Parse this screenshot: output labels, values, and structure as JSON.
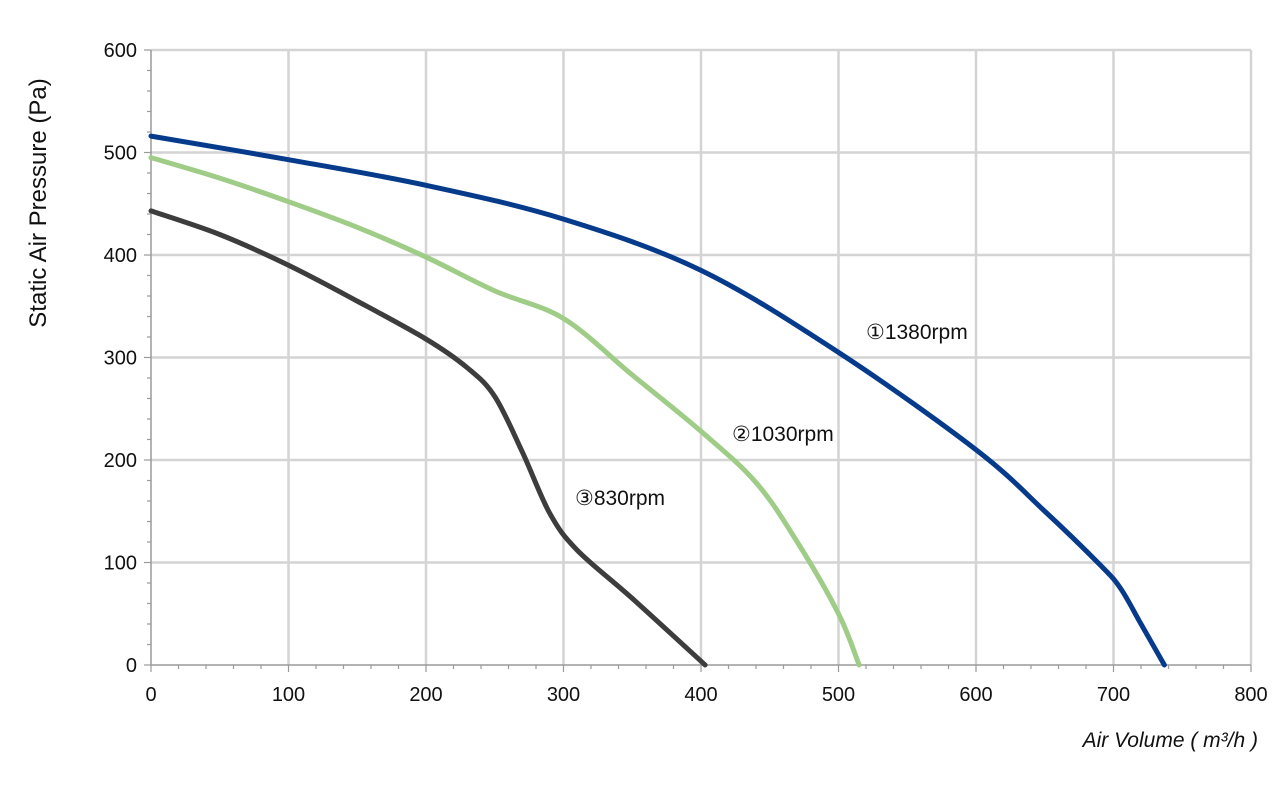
{
  "chart_data": {
    "type": "line",
    "title": "",
    "xlabel": "Air Volume ( m³/h )",
    "ylabel": "Static Air Pressure  (Pa)",
    "xlim": [
      0,
      800
    ],
    "ylim": [
      0,
      600
    ],
    "x_ticks": [
      0,
      100,
      200,
      300,
      400,
      500,
      600,
      700,
      800
    ],
    "y_ticks": [
      0,
      100,
      200,
      300,
      400,
      500,
      600
    ],
    "grid": true,
    "legend": "inline labels on curves",
    "series": [
      {
        "name": "①1380rpm",
        "color": "#063b8c",
        "x": [
          0,
          100,
          200,
          300,
          400,
          500,
          600,
          650,
          690,
          705,
          720,
          737
        ],
        "y": [
          516,
          493,
          468,
          435,
          385,
          305,
          210,
          150,
          98,
          75,
          40,
          0
        ]
      },
      {
        "name": "②1030rpm",
        "color": "#9fcc87",
        "x": [
          0,
          50,
          100,
          150,
          200,
          250,
          300,
          350,
          400,
          440,
          470,
          500,
          515
        ],
        "y": [
          495,
          475,
          452,
          427,
          398,
          365,
          338,
          283,
          228,
          178,
          120,
          50,
          0
        ]
      },
      {
        "name": "③830rpm",
        "color": "#3d3d3d",
        "x": [
          0,
          50,
          100,
          150,
          200,
          230,
          250,
          270,
          290,
          310,
          350,
          403
        ],
        "y": [
          443,
          420,
          390,
          355,
          318,
          290,
          262,
          208,
          148,
          112,
          65,
          0
        ]
      }
    ]
  }
}
